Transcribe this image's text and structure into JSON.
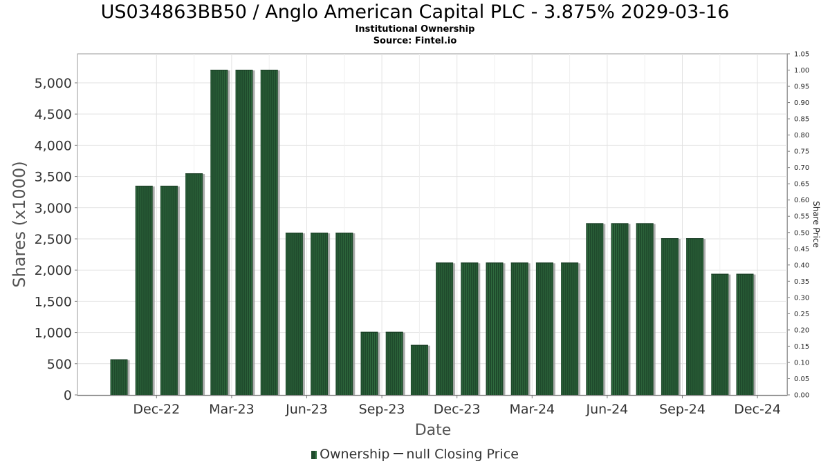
{
  "header": {
    "title": "US034863BB50 / Anglo American Capital PLC - 3.875% 2029-03-16",
    "subtitle1": "Institutional Ownership",
    "subtitle2": "Source: Fintel.io"
  },
  "legend": {
    "ownership": "Ownership",
    "closing_price": "null Closing Price"
  },
  "chart_data": {
    "type": "bar",
    "title": "US034863BB50 / Anglo American Capital PLC - 3.875% 2029-03-16",
    "xlabel": "Date",
    "ylabel": "Shares (x1000)",
    "y2label": "Share Price",
    "ylim": [
      0,
      5250
    ],
    "y2lim": [
      0,
      1.05
    ],
    "grid": true,
    "legend_position": "bottom",
    "bar_color": "#1f4a2c",
    "y_ticks": [
      "0",
      "500",
      "1,000",
      "1,500",
      "2,000",
      "2,500",
      "3,000",
      "3,500",
      "4,000",
      "4,500",
      "5,000"
    ],
    "y_tick_values": [
      0,
      500,
      1000,
      1500,
      2000,
      2500,
      3000,
      3500,
      4000,
      4500,
      5000
    ],
    "y2_ticks": [
      "0.00",
      "0.05",
      "0.10",
      "0.15",
      "0.20",
      "0.25",
      "0.30",
      "0.35",
      "0.40",
      "0.45",
      "0.50",
      "0.55",
      "0.60",
      "0.65",
      "0.70",
      "0.75",
      "0.80",
      "0.85",
      "0.90",
      "0.95",
      "1.00",
      "1.05"
    ],
    "x_ticks": [
      "Dec-22",
      "Mar-23",
      "Jun-23",
      "Sep-23",
      "Dec-23",
      "Mar-24",
      "Jun-24",
      "Sep-24",
      "Dec-24"
    ],
    "series": [
      {
        "name": "Ownership",
        "values": [
          570,
          3350,
          3350,
          3550,
          5210,
          5210,
          5210,
          2600,
          2600,
          2600,
          1010,
          1010,
          800,
          2120,
          2120,
          2120,
          2120,
          2120,
          2120,
          2750,
          2750,
          2750,
          2510,
          2510,
          1940,
          1940
        ]
      }
    ]
  }
}
